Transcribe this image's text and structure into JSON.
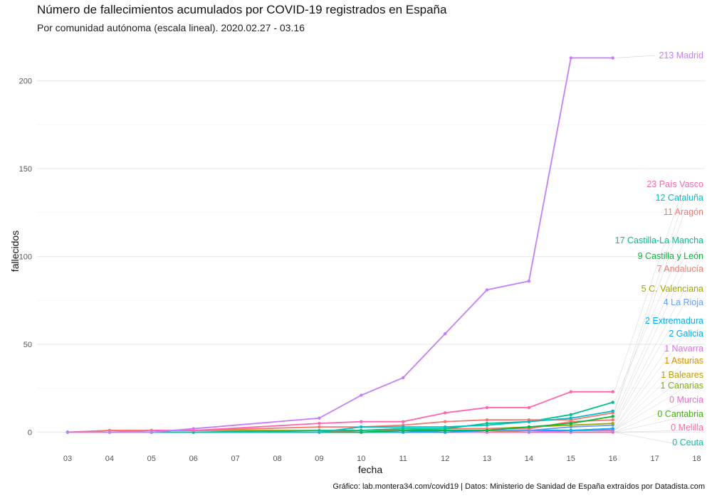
{
  "title": "Número de fallecimientos acumulados por COVID-19 registrados en España",
  "subtitle": "Por comunidad autónoma (escala lineal). 2020.02.27 - 03.16",
  "caption": "Gráfico: lab.montera34.com/covid19 | Datos: Ministerio de Sanidad de España extraídos por Datadista.com",
  "chart_data": {
    "type": "line",
    "title": "Número de fallecimientos acumulados por COVID-19 registrados en España",
    "subtitle": "Por comunidad autónoma (escala lineal). 2020.02.27 - 03.16",
    "xlabel": "fecha",
    "ylabel": "fallecidos",
    "x": [
      "03",
      "04",
      "05",
      "06",
      "09",
      "10",
      "11",
      "12",
      "13",
      "14",
      "15",
      "16"
    ],
    "x_ticks": [
      "03",
      "04",
      "05",
      "06",
      "07",
      "08",
      "09",
      "10",
      "11",
      "12",
      "13",
      "14",
      "15",
      "16",
      "17",
      "18"
    ],
    "y_ticks": [
      0,
      50,
      100,
      150,
      200
    ],
    "ylim": [
      -4,
      222
    ],
    "grid": true,
    "legend": "direct labels at line ends (right)",
    "series": [
      {
        "name": "Madrid",
        "label": "213 Madrid",
        "color": "#c77cff",
        "values": [
          0,
          0,
          0,
          2,
          8,
          21,
          31,
          56,
          81,
          86,
          213,
          213
        ]
      },
      {
        "name": "País Vasco",
        "label": "23 País Vasco",
        "color": "#ff64b0",
        "values": [
          0,
          0,
          1,
          1,
          5,
          6,
          6,
          11,
          14,
          14,
          23,
          23
        ]
      },
      {
        "name": "Cataluña",
        "label": "12 Cataluña",
        "color": "#00bfc4",
        "values": [
          0,
          0,
          0,
          0,
          0,
          3,
          3,
          3,
          4,
          6,
          8,
          12
        ]
      },
      {
        "name": "Aragón",
        "label": "11 Aragón",
        "color": "#f8766d",
        "values": [
          0,
          1,
          1,
          1,
          3,
          3,
          4,
          6,
          7,
          7,
          7,
          11
        ]
      },
      {
        "name": "Castilla-La Mancha",
        "label": "17 Castilla-La Mancha",
        "color": "#00c08b",
        "values": [
          0,
          0,
          0,
          0,
          1,
          1,
          2,
          2,
          5,
          6,
          10,
          17
        ]
      },
      {
        "name": "Castilla y León",
        "label": "9 Castilla y León",
        "color": "#00ba38",
        "values": [
          0,
          0,
          0,
          0,
          0,
          0,
          1,
          1,
          1,
          3,
          5,
          9
        ]
      },
      {
        "name": "Andalucía",
        "label": "7 Andalucía",
        "color": "#f8766d",
        "values": [
          0,
          0,
          0,
          0,
          0,
          1,
          1,
          2,
          2,
          2,
          6,
          7
        ]
      },
      {
        "name": "C. Valenciana",
        "label": "5 C. Valenciana",
        "color": "#a3a500",
        "values": [
          0,
          1,
          1,
          1,
          1,
          1,
          2,
          2,
          2,
          3,
          4,
          5
        ]
      },
      {
        "name": "La Rioja",
        "label": "4 La Rioja",
        "color": "#619cff",
        "values": [
          0,
          0,
          0,
          0,
          0,
          0,
          1,
          1,
          1,
          1,
          3,
          4
        ]
      },
      {
        "name": "Extremadura",
        "label": "2 Extremadura",
        "color": "#00b0f6",
        "values": [
          0,
          0,
          0,
          0,
          0,
          0,
          0,
          1,
          1,
          1,
          1,
          2
        ]
      },
      {
        "name": "Galicia",
        "label": "2 Galicia",
        "color": "#00a9ff",
        "values": [
          0,
          0,
          0,
          0,
          0,
          0,
          0,
          0,
          1,
          1,
          1,
          2
        ]
      },
      {
        "name": "Navarra",
        "label": "1 Navarra",
        "color": "#e76bf3",
        "values": [
          0,
          0,
          0,
          0,
          0,
          0,
          0,
          0,
          0,
          0,
          1,
          1
        ]
      },
      {
        "name": "Asturias",
        "label": "1 Asturias",
        "color": "#d89000",
        "values": [
          0,
          0,
          0,
          0,
          0,
          0,
          0,
          0,
          0,
          1,
          1,
          1
        ]
      },
      {
        "name": "Baleares",
        "label": "1 Baleares",
        "color": "#c09b00",
        "values": [
          0,
          0,
          0,
          0,
          0,
          0,
          0,
          0,
          1,
          1,
          1,
          1
        ]
      },
      {
        "name": "Canarias",
        "label": "1 Canarias",
        "color": "#7cae00",
        "values": [
          0,
          0,
          0,
          0,
          0,
          0,
          0,
          1,
          1,
          1,
          1,
          1
        ]
      },
      {
        "name": "Murcia",
        "label": "0 Murcia",
        "color": "#fd61d1",
        "values": [
          0,
          0,
          0,
          0,
          0,
          0,
          0,
          0,
          0,
          0,
          0,
          0
        ]
      },
      {
        "name": "Cantabria",
        "label": "0 Cantabria",
        "color": "#39b600",
        "values": [
          0,
          0,
          0,
          0,
          0,
          0,
          0,
          0,
          0,
          0,
          0,
          0
        ]
      },
      {
        "name": "Melilla",
        "label": "0 Melilla",
        "color": "#ff67a4",
        "values": [
          0,
          0,
          0,
          0,
          0,
          0,
          0,
          0,
          0,
          0,
          0,
          0
        ]
      },
      {
        "name": "Ceuta",
        "label": "0 Ceuta",
        "color": "#00c1a9",
        "values": [
          0,
          0,
          0,
          0,
          0,
          0,
          0,
          0,
          0,
          0,
          0,
          0
        ]
      }
    ]
  }
}
